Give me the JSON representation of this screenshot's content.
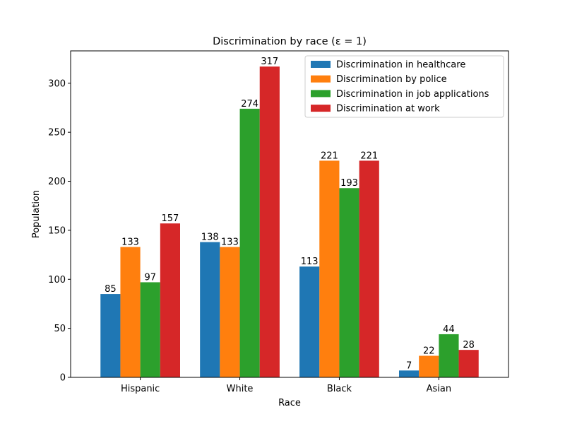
{
  "chart_data": {
    "type": "bar",
    "title": "Discrimination by race (ε = 1)",
    "xlabel": "Race",
    "ylabel": "Population",
    "categories": [
      "Hispanic",
      "White",
      "Black",
      "Asian"
    ],
    "ylim": [
      0,
      333
    ],
    "yticks": [
      0,
      50,
      100,
      150,
      200,
      250,
      300
    ],
    "grid": false,
    "legend_position": "top-right",
    "series": [
      {
        "name": "Discrimination in healthcare",
        "color": "#1f77b4",
        "values": [
          85,
          138,
          113,
          7
        ]
      },
      {
        "name": "Discrimination by police",
        "color": "#ff7f0e",
        "values": [
          133,
          133,
          221,
          22
        ]
      },
      {
        "name": "Discrimination in job applications",
        "color": "#2ca02c",
        "values": [
          97,
          274,
          193,
          44
        ]
      },
      {
        "name": "Discrimination at work",
        "color": "#d62728",
        "values": [
          157,
          317,
          221,
          28
        ]
      }
    ]
  }
}
